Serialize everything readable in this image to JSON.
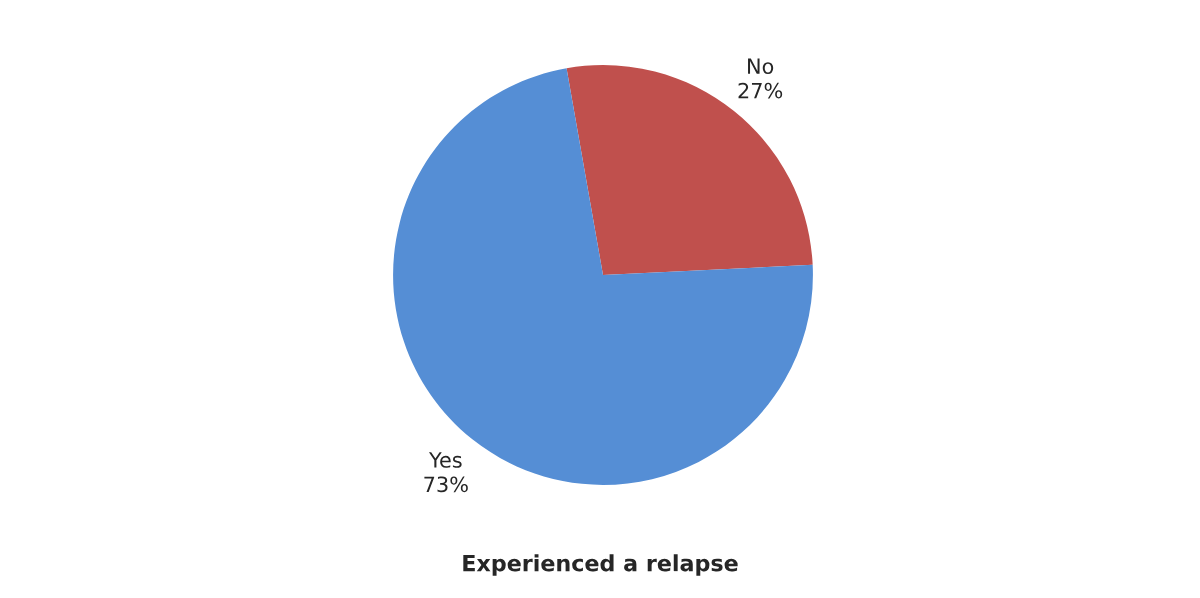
{
  "chart_data": {
    "type": "pie",
    "title": "Experienced a relapse",
    "categories": [
      "No",
      "Yes"
    ],
    "values": [
      27,
      73
    ],
    "value_labels": [
      "27%",
      "73%"
    ],
    "colors": [
      "#c0504d",
      "#558ed5"
    ],
    "legend": false
  }
}
